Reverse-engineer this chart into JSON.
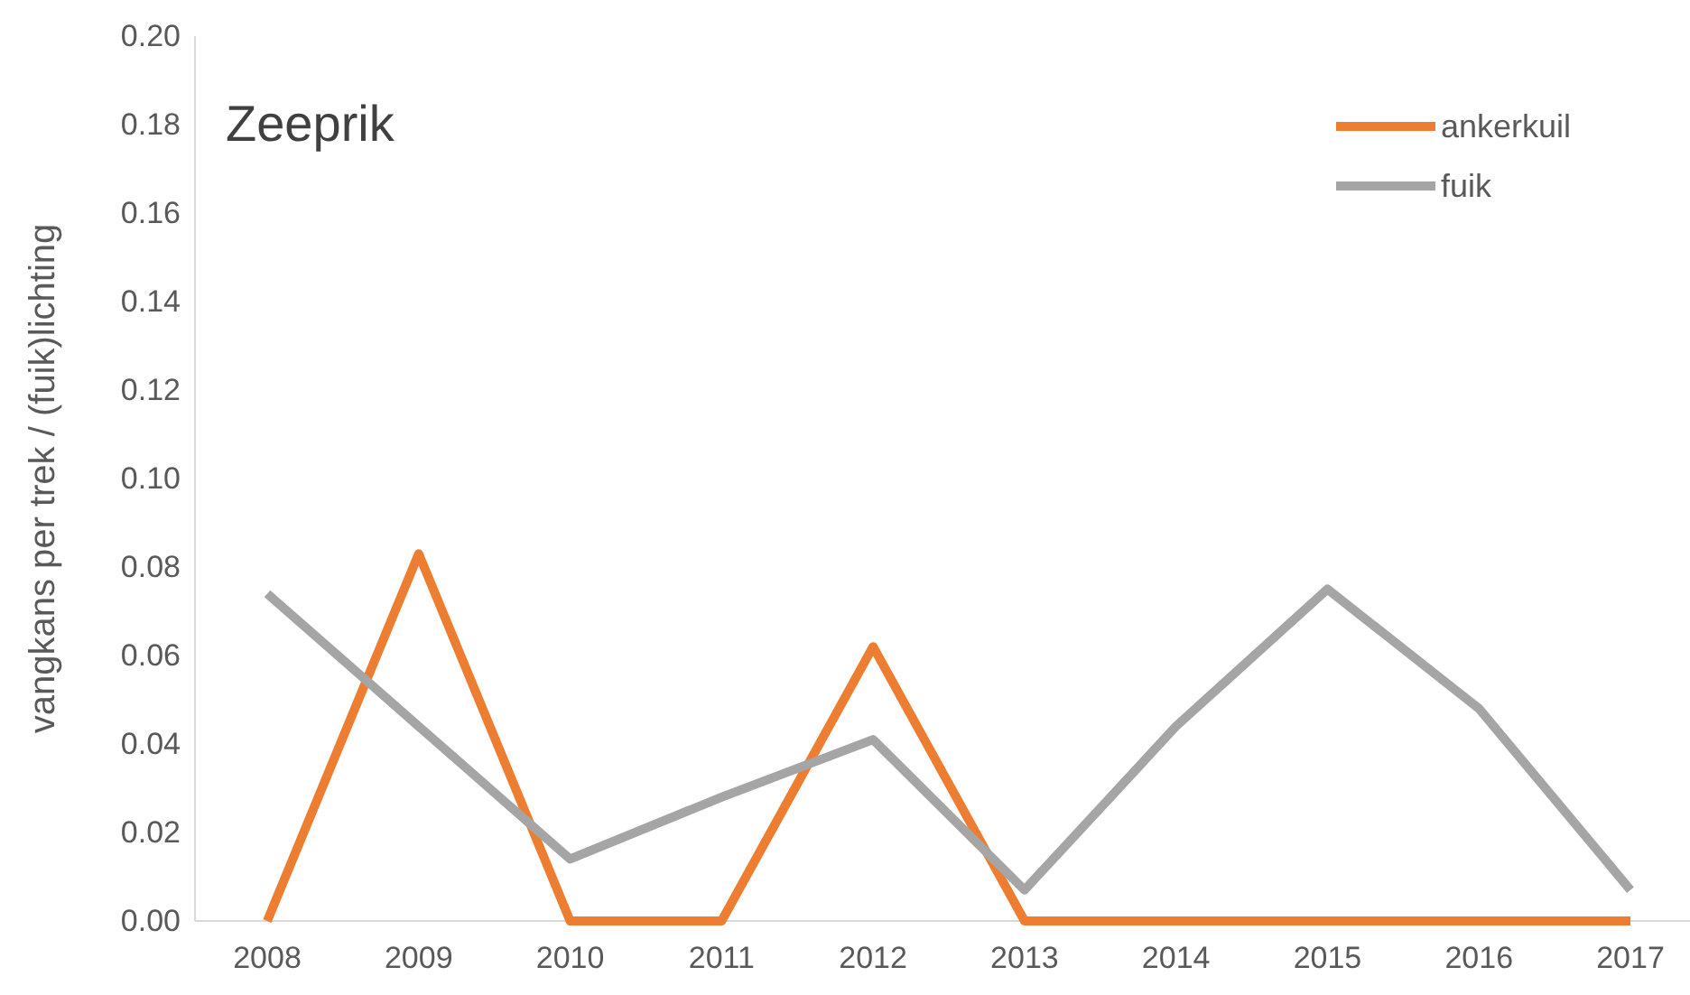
{
  "chart_data": {
    "type": "line",
    "title": "Zeeprik",
    "ylabel": "vangkans per trek / (fuik)lichting",
    "categories": [
      "2008",
      "2009",
      "2010",
      "2011",
      "2012",
      "2013",
      "2014",
      "2015",
      "2016",
      "2017"
    ],
    "series": [
      {
        "name": "ankerkuil",
        "color": "#ed7d31",
        "values": [
          0,
          0.083,
          0,
          0,
          0.062,
          0,
          0,
          0,
          0,
          0
        ]
      },
      {
        "name": "fuik",
        "color": "#a5a5a5",
        "values": [
          0.074,
          0.044,
          0.014,
          0.028,
          0.041,
          0.007,
          0.044,
          0.075,
          0.048,
          0.007
        ]
      }
    ],
    "ylim": [
      0,
      0.2
    ],
    "yticks": [
      {
        "value": 0,
        "label": "0.00"
      },
      {
        "value": 0.02,
        "label": "0.02"
      },
      {
        "value": 0.04,
        "label": "0.04"
      },
      {
        "value": 0.06,
        "label": "0.06"
      },
      {
        "value": 0.08,
        "label": "0.08"
      },
      {
        "value": 0.1,
        "label": "0.10"
      },
      {
        "value": 0.12,
        "label": "0.12"
      },
      {
        "value": 0.14,
        "label": "0.14"
      },
      {
        "value": 0.16,
        "label": "0.16"
      },
      {
        "value": 0.18,
        "label": "0.18"
      },
      {
        "value": 0.2,
        "label": "0.20"
      }
    ],
    "grid": false,
    "legend": "top right",
    "marker": "none",
    "line_style": "solid"
  }
}
